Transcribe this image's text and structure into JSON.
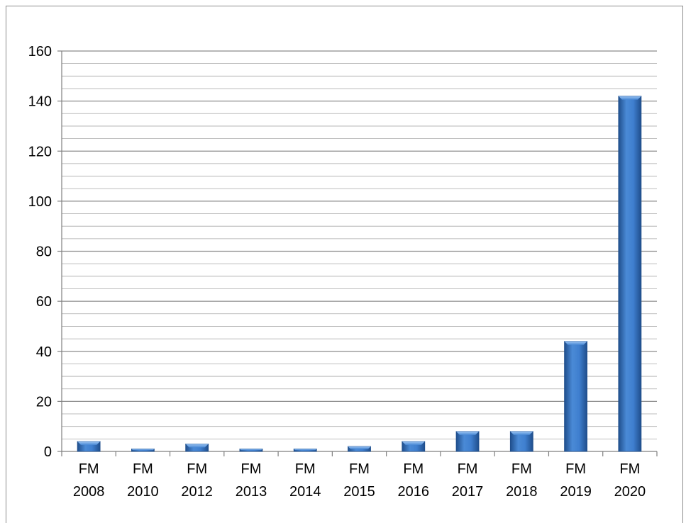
{
  "chart_data": {
    "type": "bar",
    "categories": [
      "FM 2008",
      "FM 2010",
      "FM 2012",
      "FM 2013",
      "FM 2014",
      "FM 2015",
      "FM 2016",
      "FM 2017",
      "FM 2018",
      "FM 2019",
      "FM 2020"
    ],
    "category_lines": [
      [
        "FM",
        "2008"
      ],
      [
        "FM",
        "2010"
      ],
      [
        "FM",
        "2012"
      ],
      [
        "FM",
        "2013"
      ],
      [
        "FM",
        "2014"
      ],
      [
        "FM",
        "2015"
      ],
      [
        "FM",
        "2016"
      ],
      [
        "FM",
        "2017"
      ],
      [
        "FM",
        "2018"
      ],
      [
        "FM",
        "2019"
      ],
      [
        "FM",
        "2020"
      ]
    ],
    "values": [
      4,
      1,
      3,
      1,
      1,
      2,
      4,
      8,
      8,
      44,
      142
    ],
    "ylim": [
      0,
      160
    ],
    "y_ticks": [
      0,
      20,
      40,
      60,
      80,
      100,
      120,
      140,
      160
    ],
    "y_minor_step": 5,
    "grid": true,
    "legend": "none",
    "colors": {
      "bar_dark": "#1f4e8c",
      "bar_mid": "#3f7fcf",
      "bar_light": "#7fb2ee",
      "gridline": "#8c8c8c",
      "axis": "#7f7f7f"
    }
  }
}
